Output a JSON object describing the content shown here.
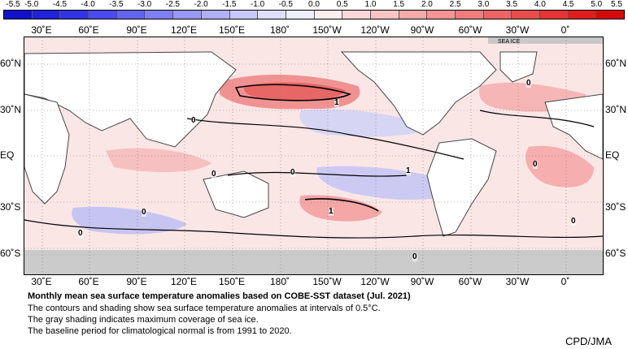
{
  "colorbar": {
    "labels": [
      "-5.5",
      "-5.0",
      "-4.5",
      "-4.0",
      "-3.5",
      "-3.0",
      "-2.5",
      "-2.0",
      "-1.5",
      "-1.0",
      "-0.5",
      "0.0",
      "0.5",
      "1.0",
      "1.5",
      "2.0",
      "2.5",
      "3.0",
      "3.5",
      "4.0",
      "4.5",
      "5.0",
      "5.5"
    ],
    "colors": [
      "#1111cc",
      "#2222dd",
      "#3333e6",
      "#4a4aee",
      "#6464f2",
      "#7e7ef5",
      "#9898f7",
      "#b0b0fa",
      "#c8c8fc",
      "#dedefd",
      "#eeeefe",
      "#ffeeee",
      "#fdd8d8",
      "#fbc4c4",
      "#f8aaaa",
      "#f59494",
      "#f27c7c",
      "#ee6464",
      "#ea4c4c",
      "#e63434",
      "#e01c1c",
      "#d80808"
    ]
  },
  "lon_labels": [
    "30˚E",
    "60˚E",
    "90˚E",
    "120˚E",
    "150˚E",
    "180˚",
    "150˚W",
    "120˚W",
    "90˚W",
    "60˚W",
    "30˚W",
    "0˚"
  ],
  "lat_left": [
    "60˚N",
    "30˚N",
    "EQ",
    "30˚S",
    "60˚S"
  ],
  "lat_right": [
    "60˚N",
    "30˚N",
    "EQ",
    "30˚S",
    "60˚S"
  ],
  "sea_ice_label": "SEA ICE",
  "contour_labels": [
    "0",
    "1",
    "0",
    "0",
    "1",
    "0",
    "0",
    "1",
    "0",
    "0",
    "0",
    "0"
  ],
  "caption": {
    "title": "Monthly mean sea surface temperature anomalies based on COBE-SST dataset (Jul. 2021)",
    "line1": "The contours and shading show sea surface temperature anomalies at intervals of 0.5°C.",
    "line2": "The gray shading indicates maximum coverage of sea ice.",
    "line3": "The baseline period for climatological normal is from 1991 to 2020."
  },
  "credit": "CPD/JMA",
  "colors": {
    "land": "#ffffff",
    "sea_ice": "#c8c8c8",
    "warm": "#f5a0a0",
    "cool": "#b8b8f0",
    "coastline": "#444444"
  }
}
